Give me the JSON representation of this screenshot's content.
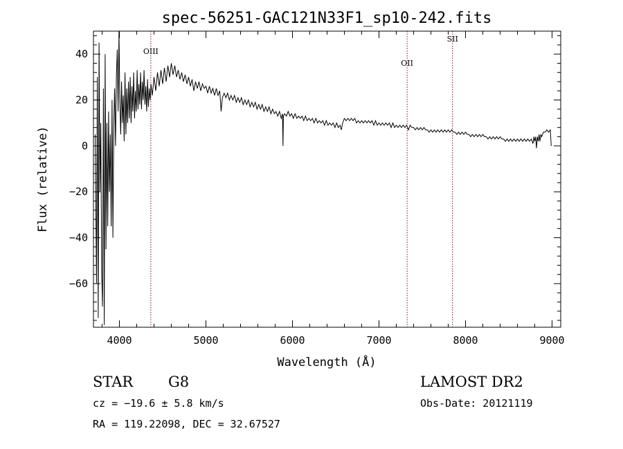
{
  "chart_data": {
    "type": "line",
    "title": "spec-56251-GAC121N33F1_sp10-242.fits",
    "xlabel": "Wavelength (Å)",
    "ylabel": "Flux (relative)",
    "xlim": [
      3700,
      9100
    ],
    "ylim": [
      -79,
      50
    ],
    "x_ticks": [
      4000,
      5000,
      6000,
      7000,
      8000,
      9000
    ],
    "x_tick_labels": [
      "4000",
      "5000",
      "6000",
      "7000",
      "8000",
      "9000"
    ],
    "y_ticks": [
      -60,
      -40,
      -20,
      0,
      20,
      40
    ],
    "y_tick_labels": [
      "−60",
      "−40",
      "−20",
      "0",
      "20",
      "40"
    ],
    "grid": false,
    "line_markers": [
      {
        "label": "OIII",
        "x": 4363
      },
      {
        "label": "OII",
        "x": 7325
      },
      {
        "label": "SII",
        "x": 7850
      }
    ],
    "series": [
      {
        "values": [
          [
            3720,
            5
          ],
          [
            3735,
            -60
          ],
          [
            3745,
            30
          ],
          [
            3755,
            -75
          ],
          [
            3765,
            45
          ],
          [
            3775,
            -20
          ],
          [
            3785,
            10
          ],
          [
            3795,
            -55
          ],
          [
            3805,
            -70
          ],
          [
            3815,
            25
          ],
          [
            3825,
            -78
          ],
          [
            3835,
            40
          ],
          [
            3845,
            -45
          ],
          [
            3855,
            10
          ],
          [
            3865,
            -35
          ],
          [
            3875,
            15
          ],
          [
            3885,
            -20
          ],
          [
            3895,
            5
          ],
          [
            3905,
            -35
          ],
          [
            3915,
            20
          ],
          [
            3925,
            -40
          ],
          [
            3935,
            10
          ],
          [
            3945,
            25
          ],
          [
            3955,
            0
          ],
          [
            3965,
            30
          ],
          [
            3975,
            42
          ],
          [
            3985,
            15
          ],
          [
            3995,
            50
          ],
          [
            4005,
            20
          ],
          [
            4015,
            5
          ],
          [
            4025,
            28
          ],
          [
            4035,
            10
          ],
          [
            4045,
            22
          ],
          [
            4055,
            2
          ],
          [
            4065,
            32
          ],
          [
            4075,
            5
          ],
          [
            4085,
            25
          ],
          [
            4095,
            10
          ],
          [
            4105,
            28
          ],
          [
            4115,
            12
          ],
          [
            4125,
            30
          ],
          [
            4135,
            10
          ],
          [
            4145,
            26
          ],
          [
            4155,
            15
          ],
          [
            4165,
            32
          ],
          [
            4175,
            12
          ],
          [
            4185,
            24
          ],
          [
            4195,
            15
          ],
          [
            4205,
            33
          ],
          [
            4215,
            16
          ],
          [
            4225,
            27
          ],
          [
            4235,
            18
          ],
          [
            4245,
            32
          ],
          [
            4255,
            16
          ],
          [
            4265,
            28
          ],
          [
            4275,
            20
          ],
          [
            4285,
            33
          ],
          [
            4295,
            18
          ],
          [
            4305,
            26
          ],
          [
            4315,
            15
          ],
          [
            4325,
            29
          ],
          [
            4335,
            17
          ],
          [
            4345,
            25
          ],
          [
            4355,
            20
          ],
          [
            4365,
            27
          ],
          [
            4380,
            22
          ],
          [
            4400,
            30
          ],
          [
            4420,
            24
          ],
          [
            4440,
            32
          ],
          [
            4460,
            26
          ],
          [
            4480,
            33
          ],
          [
            4500,
            27
          ],
          [
            4520,
            34
          ],
          [
            4540,
            28
          ],
          [
            4560,
            35
          ],
          [
            4580,
            30
          ],
          [
            4600,
            36
          ],
          [
            4620,
            31
          ],
          [
            4640,
            35
          ],
          [
            4660,
            30
          ],
          [
            4680,
            33
          ],
          [
            4700,
            29
          ],
          [
            4720,
            32
          ],
          [
            4740,
            28
          ],
          [
            4760,
            31
          ],
          [
            4780,
            27
          ],
          [
            4800,
            30
          ],
          [
            4820,
            26
          ],
          [
            4840,
            29
          ],
          [
            4860,
            24
          ],
          [
            4880,
            28
          ],
          [
            4900,
            25
          ],
          [
            4920,
            28
          ],
          [
            4940,
            24
          ],
          [
            4960,
            27
          ],
          [
            4980,
            25
          ],
          [
            5000,
            26
          ],
          [
            5020,
            23
          ],
          [
            5040,
            26
          ],
          [
            5060,
            23
          ],
          [
            5080,
            25
          ],
          [
            5100,
            22
          ],
          [
            5120,
            25
          ],
          [
            5140,
            22
          ],
          [
            5160,
            24
          ],
          [
            5175,
            15
          ],
          [
            5190,
            21
          ],
          [
            5210,
            23
          ],
          [
            5230,
            21
          ],
          [
            5250,
            23
          ],
          [
            5270,
            20
          ],
          [
            5290,
            22
          ],
          [
            5310,
            20
          ],
          [
            5330,
            22
          ],
          [
            5350,
            19
          ],
          [
            5370,
            21
          ],
          [
            5390,
            19
          ],
          [
            5410,
            21
          ],
          [
            5430,
            18
          ],
          [
            5450,
            20
          ],
          [
            5470,
            18
          ],
          [
            5490,
            20
          ],
          [
            5510,
            17
          ],
          [
            5530,
            19
          ],
          [
            5550,
            17
          ],
          [
            5570,
            19
          ],
          [
            5590,
            16
          ],
          [
            5610,
            18
          ],
          [
            5630,
            16
          ],
          [
            5650,
            18
          ],
          [
            5670,
            15
          ],
          [
            5690,
            17
          ],
          [
            5710,
            15
          ],
          [
            5730,
            17
          ],
          [
            5750,
            14
          ],
          [
            5770,
            16
          ],
          [
            5790,
            14
          ],
          [
            5810,
            15
          ],
          [
            5830,
            13
          ],
          [
            5850,
            15
          ],
          [
            5870,
            12
          ],
          [
            5885,
            14
          ],
          [
            5890,
            0
          ],
          [
            5895,
            13
          ],
          [
            5910,
            14
          ],
          [
            5930,
            13
          ],
          [
            5950,
            15
          ],
          [
            5970,
            13
          ],
          [
            5990,
            14
          ],
          [
            6010,
            12
          ],
          [
            6030,
            14
          ],
          [
            6050,
            12
          ],
          [
            6070,
            13
          ],
          [
            6090,
            12
          ],
          [
            6110,
            13
          ],
          [
            6130,
            11
          ],
          [
            6150,
            13
          ],
          [
            6170,
            11
          ],
          [
            6190,
            12
          ],
          [
            6210,
            11
          ],
          [
            6230,
            12
          ],
          [
            6250,
            10
          ],
          [
            6270,
            12
          ],
          [
            6290,
            10
          ],
          [
            6310,
            11
          ],
          [
            6330,
            10
          ],
          [
            6350,
            11
          ],
          [
            6370,
            9
          ],
          [
            6390,
            11
          ],
          [
            6410,
            9
          ],
          [
            6430,
            10
          ],
          [
            6450,
            9
          ],
          [
            6470,
            10
          ],
          [
            6490,
            8
          ],
          [
            6510,
            10
          ],
          [
            6530,
            8
          ],
          [
            6550,
            9
          ],
          [
            6565,
            7
          ],
          [
            6580,
            10
          ],
          [
            6600,
            12
          ],
          [
            6620,
            11
          ],
          [
            6640,
            12
          ],
          [
            6660,
            11
          ],
          [
            6680,
            12
          ],
          [
            6700,
            11
          ],
          [
            6720,
            12
          ],
          [
            6740,
            10
          ],
          [
            6760,
            11
          ],
          [
            6780,
            10
          ],
          [
            6800,
            11
          ],
          [
            6820,
            10
          ],
          [
            6840,
            11
          ],
          [
            6860,
            10
          ],
          [
            6880,
            11
          ],
          [
            6900,
            10
          ],
          [
            6920,
            11
          ],
          [
            6940,
            9
          ],
          [
            6960,
            11
          ],
          [
            6980,
            9
          ],
          [
            7000,
            10
          ],
          [
            7020,
            9
          ],
          [
            7040,
            10
          ],
          [
            7060,
            9
          ],
          [
            7080,
            10
          ],
          [
            7100,
            9
          ],
          [
            7120,
            10
          ],
          [
            7140,
            8
          ],
          [
            7160,
            10
          ],
          [
            7180,
            8
          ],
          [
            7200,
            9
          ],
          [
            7220,
            8
          ],
          [
            7240,
            9
          ],
          [
            7260,
            8
          ],
          [
            7280,
            9
          ],
          [
            7300,
            8
          ],
          [
            7320,
            9
          ],
          [
            7340,
            7
          ],
          [
            7360,
            9
          ],
          [
            7380,
            8
          ],
          [
            7400,
            8
          ],
          [
            7420,
            7
          ],
          [
            7440,
            8
          ],
          [
            7460,
            7
          ],
          [
            7480,
            8
          ],
          [
            7500,
            7
          ],
          [
            7520,
            8
          ],
          [
            7540,
            7
          ],
          [
            7560,
            7
          ],
          [
            7580,
            6
          ],
          [
            7600,
            7
          ],
          [
            7620,
            6
          ],
          [
            7640,
            7
          ],
          [
            7660,
            6
          ],
          [
            7680,
            7
          ],
          [
            7700,
            6
          ],
          [
            7720,
            7
          ],
          [
            7740,
            6
          ],
          [
            7760,
            7
          ],
          [
            7780,
            6
          ],
          [
            7800,
            7
          ],
          [
            7820,
            6
          ],
          [
            7840,
            7
          ],
          [
            7860,
            6
          ],
          [
            7880,
            6
          ],
          [
            7900,
            5
          ],
          [
            7920,
            6
          ],
          [
            7940,
            5
          ],
          [
            7960,
            6
          ],
          [
            7980,
            5
          ],
          [
            8000,
            6
          ],
          [
            8020,
            5
          ],
          [
            8040,
            5
          ],
          [
            8060,
            4
          ],
          [
            8080,
            5
          ],
          [
            8100,
            4
          ],
          [
            8120,
            5
          ],
          [
            8140,
            4
          ],
          [
            8160,
            5
          ],
          [
            8180,
            4
          ],
          [
            8200,
            5
          ],
          [
            8220,
            4
          ],
          [
            8240,
            4
          ],
          [
            8260,
            3
          ],
          [
            8280,
            4
          ],
          [
            8300,
            3
          ],
          [
            8320,
            4
          ],
          [
            8340,
            3
          ],
          [
            8360,
            4
          ],
          [
            8380,
            3
          ],
          [
            8400,
            4
          ],
          [
            8420,
            3
          ],
          [
            8440,
            3
          ],
          [
            8460,
            2
          ],
          [
            8480,
            3
          ],
          [
            8500,
            2
          ],
          [
            8520,
            3
          ],
          [
            8540,
            2
          ],
          [
            8560,
            3
          ],
          [
            8580,
            2
          ],
          [
            8600,
            3
          ],
          [
            8620,
            2
          ],
          [
            8640,
            3
          ],
          [
            8660,
            2
          ],
          [
            8680,
            3
          ],
          [
            8700,
            2
          ],
          [
            8720,
            3
          ],
          [
            8740,
            2
          ],
          [
            8760,
            3
          ],
          [
            8780,
            1
          ],
          [
            8790,
            4
          ],
          [
            8800,
            2
          ],
          [
            8810,
            4
          ],
          [
            8820,
            -1
          ],
          [
            8830,
            4
          ],
          [
            8840,
            2
          ],
          [
            8850,
            5
          ],
          [
            8860,
            2
          ],
          [
            8870,
            5
          ],
          [
            8880,
            4
          ],
          [
            8900,
            6
          ],
          [
            8920,
            6
          ],
          [
            8940,
            7
          ],
          [
            8960,
            6
          ],
          [
            8980,
            7
          ],
          [
            8990,
            0
          ]
        ]
      }
    ]
  },
  "footer": {
    "object_class": "STAR",
    "subclass": "G8",
    "survey": "LAMOST DR2",
    "redshift_text": "cz = −19.6 ± 5.8 km/s",
    "obs_date_text": "Obs-Date: 20121119",
    "coords_text": "RA = 119.22098, DEC =  32.67527"
  }
}
